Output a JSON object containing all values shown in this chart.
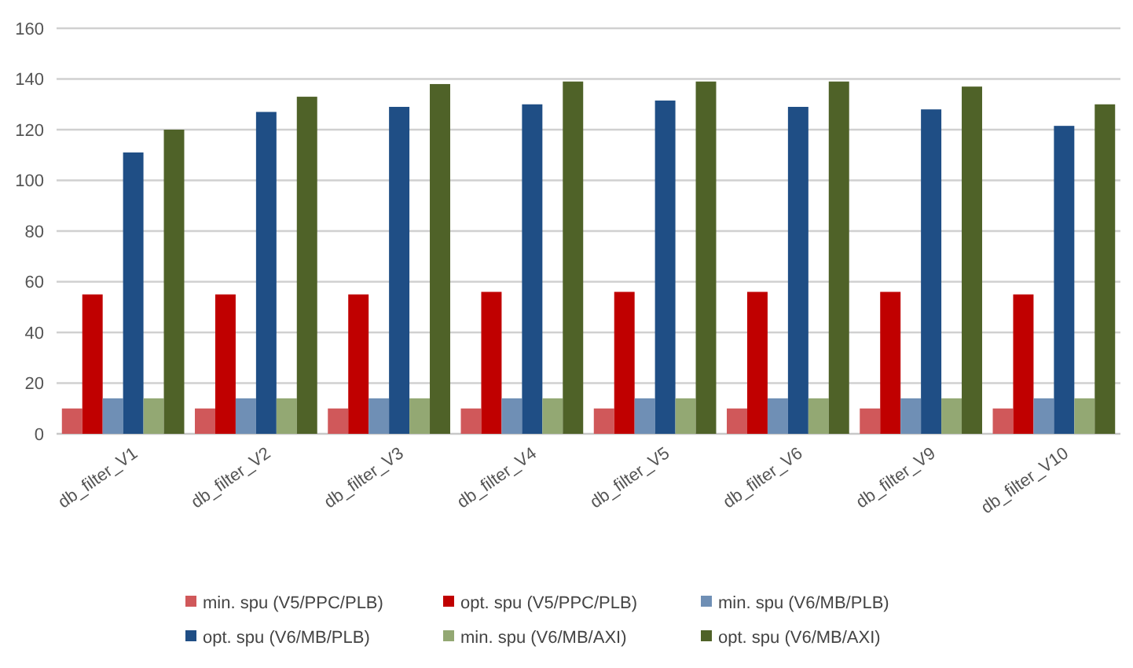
{
  "chart_data": {
    "type": "bar",
    "categories": [
      "db_filter_V1",
      "db_filter_V2",
      "db_filter_V3",
      "db_filter_V4",
      "db_filter_V5",
      "db_filter_V6",
      "db_filter_V9",
      "db_filter_V10"
    ],
    "series": [
      {
        "name": "min. spu (V5/PPC/PLB)",
        "color": "#d0585a",
        "values": [
          10,
          10,
          10,
          10,
          10,
          10,
          10,
          10
        ]
      },
      {
        "name": "opt. spu (V5/PPC/PLB)",
        "color": "#c00000",
        "values": [
          55,
          55,
          55,
          56,
          56,
          56,
          56,
          55
        ]
      },
      {
        "name": "min. spu (V6/MB/PLB)",
        "color": "#6f8fb5",
        "values": [
          14,
          14,
          14,
          14,
          14,
          14,
          14,
          14
        ]
      },
      {
        "name": "opt. spu (V6/MB/PLB)",
        "color": "#1f4e85",
        "values": [
          111,
          127,
          129,
          130,
          131.5,
          129,
          128,
          121.5
        ]
      },
      {
        "name": "min. spu (V6/MB/AXI)",
        "color": "#93a873",
        "values": [
          14,
          14,
          14,
          14,
          14,
          14,
          14,
          14
        ]
      },
      {
        "name": "opt. spu (V6/MB/AXI)",
        "color": "#4f6228",
        "values": [
          120,
          133,
          138,
          139,
          139,
          139,
          137,
          130
        ]
      }
    ],
    "ylim": [
      0,
      160
    ],
    "yticks": [
      0,
      20,
      40,
      60,
      80,
      100,
      120,
      140,
      160
    ],
    "grid": "y",
    "legend": "bottom"
  }
}
